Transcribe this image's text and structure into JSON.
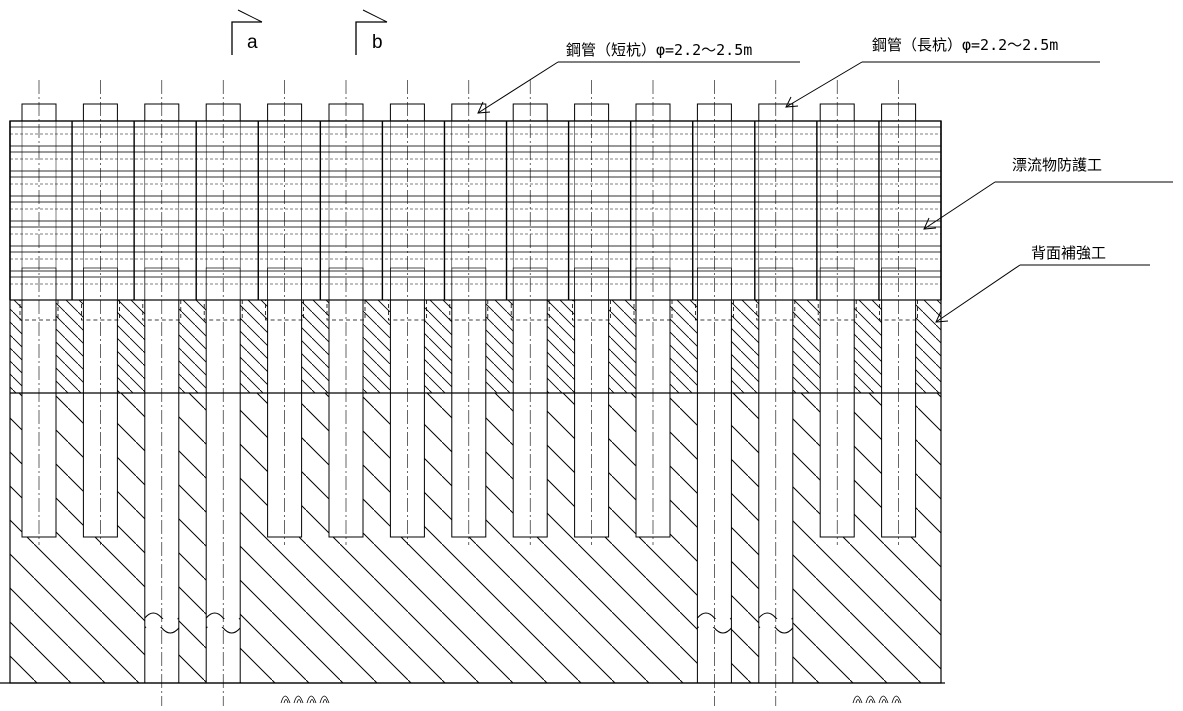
{
  "section_markers": [
    {
      "id": "a",
      "label": "a"
    },
    {
      "id": "b",
      "label": "b"
    }
  ],
  "labels": {
    "short_pile": "鋼管（短杭）φ=2.2〜2.5m",
    "long_pile": "鋼管（長杭）φ=2.2〜2.5m",
    "debris_protection": "漂流物防護工",
    "back_reinforcement": "背面補強工"
  },
  "piles": {
    "count": 15,
    "long_pile_indices": [
      2,
      3,
      11,
      12
    ]
  }
}
